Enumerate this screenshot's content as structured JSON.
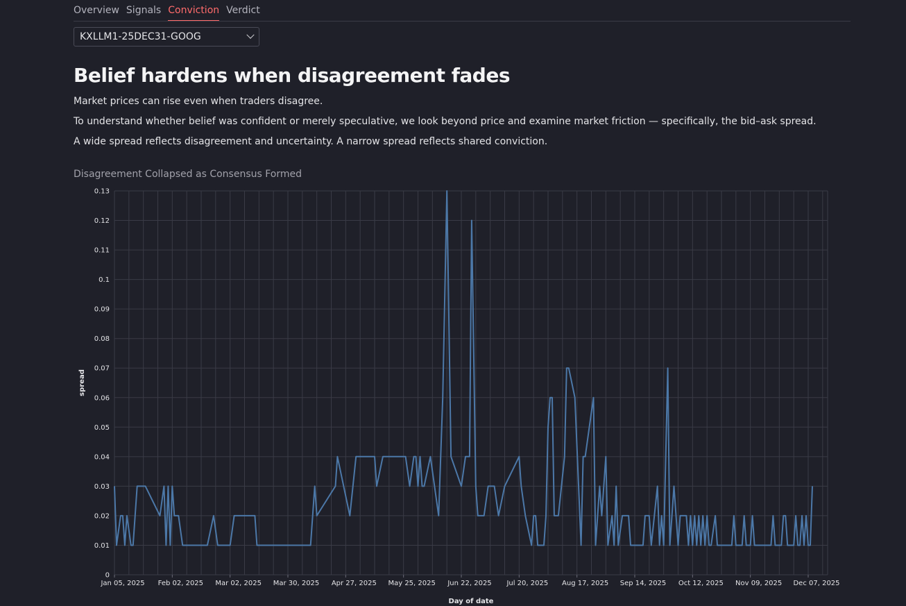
{
  "nav": {
    "tabs": [
      {
        "label": "Overview"
      },
      {
        "label": "Signals"
      },
      {
        "label": "Conviction"
      },
      {
        "label": "Verdict"
      }
    ],
    "active_tab": "Conviction"
  },
  "market_select": {
    "value": "KXLLM1-25DEC31-GOOG"
  },
  "heading": "Belief hardens when disagreement fades",
  "paragraphs": [
    "Market prices can rise even when traders disagree.",
    "To understand whether belief was confident or merely speculative, we look beyond price and examine market friction — specifically, the bid–ask spread.",
    "A wide spread reflects disagreement and uncertainty. A narrow spread reflects shared conviction."
  ],
  "colors": {
    "background": "#1f2029",
    "line": "#4c78a8",
    "active_tab": "#ff6b6b"
  },
  "chart_data": {
    "type": "line",
    "title": "Disagreement Collapsed as Consensus Formed",
    "xlabel": "Day of date",
    "ylabel": "spread",
    "xlim": [
      "2025-01-05",
      "2025-12-07"
    ],
    "ylim": [
      0,
      0.13
    ],
    "x_tick_labels": [
      "Jan 05, 2025",
      "Feb 02, 2025",
      "Mar 02, 2025",
      "Mar 30, 2025",
      "Apr 27, 2025",
      "May 25, 2025",
      "Jun 22, 2025",
      "Jul 20, 2025",
      "Aug 17, 2025",
      "Sep 14, 2025",
      "Oct 12, 2025",
      "Nov 09, 2025",
      "Dec 07, 2025"
    ],
    "y_tick_labels": [
      "0",
      "0.01",
      "0.02",
      "0.03",
      "0.04",
      "0.05",
      "0.06",
      "0.07",
      "0.08",
      "0.09",
      "0.1",
      "0.11",
      "0.12",
      "0.13"
    ],
    "grid": true,
    "series": [
      {
        "points": [
          [
            "2025-01-05",
            0.03
          ],
          [
            "2025-01-06",
            0.01
          ],
          [
            "2025-01-08",
            0.02
          ],
          [
            "2025-01-09",
            0.02
          ],
          [
            "2025-01-10",
            0.01
          ],
          [
            "2025-01-11",
            0.02
          ],
          [
            "2025-01-13",
            0.01
          ],
          [
            "2025-01-14",
            0.01
          ],
          [
            "2025-01-16",
            0.03
          ],
          [
            "2025-01-20",
            0.03
          ],
          [
            "2025-01-27",
            0.02
          ],
          [
            "2025-01-29",
            0.03
          ],
          [
            "2025-01-30",
            0.01
          ],
          [
            "2025-01-31",
            0.03
          ],
          [
            "2025-02-01",
            0.01
          ],
          [
            "2025-02-02",
            0.03
          ],
          [
            "2025-02-03",
            0.02
          ],
          [
            "2025-02-05",
            0.02
          ],
          [
            "2025-02-07",
            0.01
          ],
          [
            "2025-02-19",
            0.01
          ],
          [
            "2025-02-22",
            0.02
          ],
          [
            "2025-02-24",
            0.01
          ],
          [
            "2025-03-02",
            0.01
          ],
          [
            "2025-03-04",
            0.02
          ],
          [
            "2025-03-14",
            0.02
          ],
          [
            "2025-03-15",
            0.01
          ],
          [
            "2025-03-29",
            0.01
          ],
          [
            "2025-04-10",
            0.01
          ],
          [
            "2025-04-12",
            0.03
          ],
          [
            "2025-04-13",
            0.02
          ],
          [
            "2025-04-22",
            0.03
          ],
          [
            "2025-04-23",
            0.04
          ],
          [
            "2025-04-29",
            0.02
          ],
          [
            "2025-05-02",
            0.04
          ],
          [
            "2025-05-11",
            0.04
          ],
          [
            "2025-05-12",
            0.03
          ],
          [
            "2025-05-15",
            0.04
          ],
          [
            "2025-05-26",
            0.04
          ],
          [
            "2025-05-28",
            0.03
          ],
          [
            "2025-05-30",
            0.04
          ],
          [
            "2025-05-31",
            0.04
          ],
          [
            "2025-06-01",
            0.03
          ],
          [
            "2025-06-02",
            0.04
          ],
          [
            "2025-06-03",
            0.03
          ],
          [
            "2025-06-04",
            0.03
          ],
          [
            "2025-06-07",
            0.04
          ],
          [
            "2025-06-11",
            0.02
          ],
          [
            "2025-06-13",
            0.06
          ],
          [
            "2025-06-15",
            0.13
          ],
          [
            "2025-06-17",
            0.04
          ],
          [
            "2025-06-22",
            0.03
          ],
          [
            "2025-06-24",
            0.04
          ],
          [
            "2025-06-26",
            0.04
          ],
          [
            "2025-06-27",
            0.12
          ],
          [
            "2025-06-29",
            0.03
          ],
          [
            "2025-06-30",
            0.02
          ],
          [
            "2025-07-03",
            0.02
          ],
          [
            "2025-07-05",
            0.03
          ],
          [
            "2025-07-08",
            0.03
          ],
          [
            "2025-07-10",
            0.02
          ],
          [
            "2025-07-13",
            0.03
          ],
          [
            "2025-07-20",
            0.04
          ],
          [
            "2025-07-21",
            0.03
          ],
          [
            "2025-07-23",
            0.02
          ],
          [
            "2025-07-26",
            0.01
          ],
          [
            "2025-07-27",
            0.02
          ],
          [
            "2025-07-28",
            0.02
          ],
          [
            "2025-07-29",
            0.01
          ],
          [
            "2025-08-01",
            0.01
          ],
          [
            "2025-08-02",
            0.02
          ],
          [
            "2025-08-03",
            0.05
          ],
          [
            "2025-08-04",
            0.06
          ],
          [
            "2025-08-05",
            0.06
          ],
          [
            "2025-08-06",
            0.02
          ],
          [
            "2025-08-08",
            0.02
          ],
          [
            "2025-08-11",
            0.04
          ],
          [
            "2025-08-12",
            0.07
          ],
          [
            "2025-08-13",
            0.07
          ],
          [
            "2025-08-16",
            0.06
          ],
          [
            "2025-08-19",
            0.01
          ],
          [
            "2025-08-20",
            0.04
          ],
          [
            "2025-08-21",
            0.04
          ],
          [
            "2025-08-23",
            0.05
          ],
          [
            "2025-08-25",
            0.06
          ],
          [
            "2025-08-26",
            0.01
          ],
          [
            "2025-08-28",
            0.03
          ],
          [
            "2025-08-29",
            0.02
          ],
          [
            "2025-08-31",
            0.04
          ],
          [
            "2025-09-01",
            0.01
          ],
          [
            "2025-09-03",
            0.02
          ],
          [
            "2025-09-04",
            0.01
          ],
          [
            "2025-09-05",
            0.03
          ],
          [
            "2025-09-06",
            0.01
          ],
          [
            "2025-09-08",
            0.02
          ],
          [
            "2025-09-11",
            0.02
          ],
          [
            "2025-09-12",
            0.01
          ],
          [
            "2025-09-14",
            0.01
          ],
          [
            "2025-09-15",
            0.01
          ],
          [
            "2025-09-16",
            0.01
          ],
          [
            "2025-09-18",
            0.01
          ],
          [
            "2025-09-19",
            0.02
          ],
          [
            "2025-09-21",
            0.02
          ],
          [
            "2025-09-22",
            0.01
          ],
          [
            "2025-09-25",
            0.03
          ],
          [
            "2025-09-26",
            0.01
          ],
          [
            "2025-09-27",
            0.02
          ],
          [
            "2025-09-28",
            0.01
          ],
          [
            "2025-09-30",
            0.07
          ],
          [
            "2025-10-01",
            0.01
          ],
          [
            "2025-10-02",
            0.02
          ],
          [
            "2025-10-03",
            0.03
          ],
          [
            "2025-10-04",
            0.02
          ],
          [
            "2025-10-05",
            0.01
          ],
          [
            "2025-10-06",
            0.02
          ],
          [
            "2025-10-09",
            0.02
          ],
          [
            "2025-10-10",
            0.01
          ],
          [
            "2025-10-11",
            0.02
          ],
          [
            "2025-10-12",
            0.01
          ],
          [
            "2025-10-13",
            0.02
          ],
          [
            "2025-10-14",
            0.01
          ],
          [
            "2025-10-15",
            0.02
          ],
          [
            "2025-10-16",
            0.01
          ],
          [
            "2025-10-17",
            0.02
          ],
          [
            "2025-10-18",
            0.01
          ],
          [
            "2025-10-19",
            0.02
          ],
          [
            "2025-10-20",
            0.01
          ],
          [
            "2025-10-21",
            0.01
          ],
          [
            "2025-10-23",
            0.02
          ],
          [
            "2025-10-24",
            0.01
          ],
          [
            "2025-10-26",
            0.01
          ],
          [
            "2025-10-31",
            0.01
          ],
          [
            "2025-11-01",
            0.02
          ],
          [
            "2025-11-02",
            0.01
          ],
          [
            "2025-11-05",
            0.01
          ],
          [
            "2025-11-06",
            0.02
          ],
          [
            "2025-11-07",
            0.01
          ],
          [
            "2025-11-09",
            0.01
          ],
          [
            "2025-11-10",
            0.02
          ],
          [
            "2025-11-11",
            0.01
          ],
          [
            "2025-11-18",
            0.01
          ],
          [
            "2025-11-19",
            0.01
          ],
          [
            "2025-11-20",
            0.02
          ],
          [
            "2025-11-21",
            0.01
          ],
          [
            "2025-11-24",
            0.01
          ],
          [
            "2025-11-25",
            0.02
          ],
          [
            "2025-11-26",
            0.02
          ],
          [
            "2025-11-27",
            0.01
          ],
          [
            "2025-11-28",
            0.01
          ],
          [
            "2025-11-30",
            0.01
          ],
          [
            "2025-12-01",
            0.02
          ],
          [
            "2025-12-02",
            0.01
          ],
          [
            "2025-12-03",
            0.01
          ],
          [
            "2025-12-04",
            0.02
          ],
          [
            "2025-12-05",
            0.01
          ],
          [
            "2025-12-06",
            0.02
          ],
          [
            "2025-12-07",
            0.01
          ],
          [
            "2025-12-08",
            0.01
          ],
          [
            "2025-12-09",
            0.03
          ]
        ]
      }
    ]
  }
}
